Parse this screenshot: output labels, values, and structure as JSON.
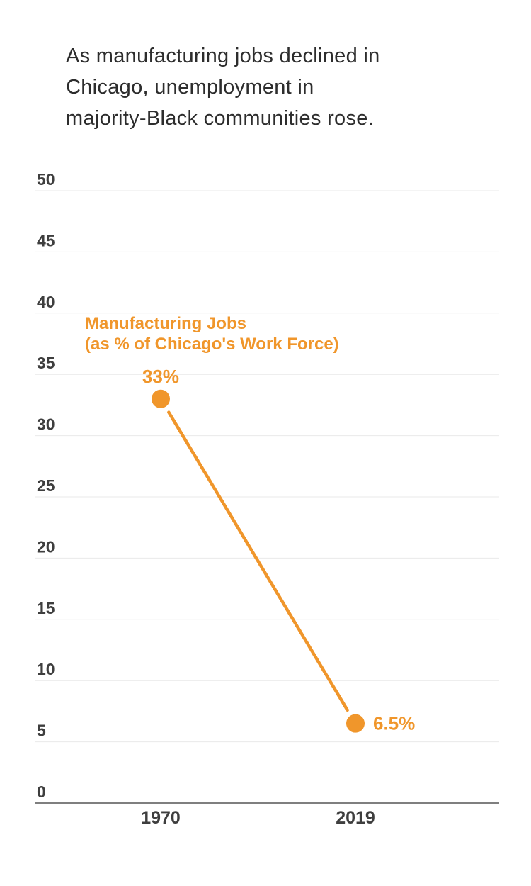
{
  "header": {
    "title": "As manufacturing jobs declined in Chicago, unemployment in majority-Black communities rose.",
    "title_lines": [
      "As manufacturing jobs declined in",
      "Chicago, unemployment in",
      "majority-Black communities rose."
    ]
  },
  "chart_data": {
    "type": "line",
    "title": "As manufacturing jobs declined in Chicago, unemployment in majority-Black communities rose.",
    "categories": [
      "1970",
      "2019"
    ],
    "series": [
      {
        "name": "Manufacturing Jobs (as % of Chicago's Work Force)",
        "values": [
          33,
          6.5
        ]
      }
    ],
    "series_label_lines": [
      "Manufacturing Jobs",
      "(as % of Chicago's Work Force)"
    ],
    "point_labels": [
      "33%",
      "6.5%"
    ],
    "xlabel": "",
    "ylabel": "",
    "ylim": [
      0,
      50
    ],
    "yticks": [
      0,
      5,
      10,
      15,
      20,
      25,
      30,
      35,
      40,
      45,
      50
    ],
    "grid": "horizontal",
    "legend_position": "annotation-above-first-point",
    "colors": {
      "accent": "#F0962B",
      "grid": "#E9E9E9",
      "axis_line": "#7F7F7F",
      "tick_label": "#3E3E3E",
      "title": "#2D2D2D",
      "point_ring": "#FFFFFF",
      "background": "#FFFFFF"
    }
  }
}
